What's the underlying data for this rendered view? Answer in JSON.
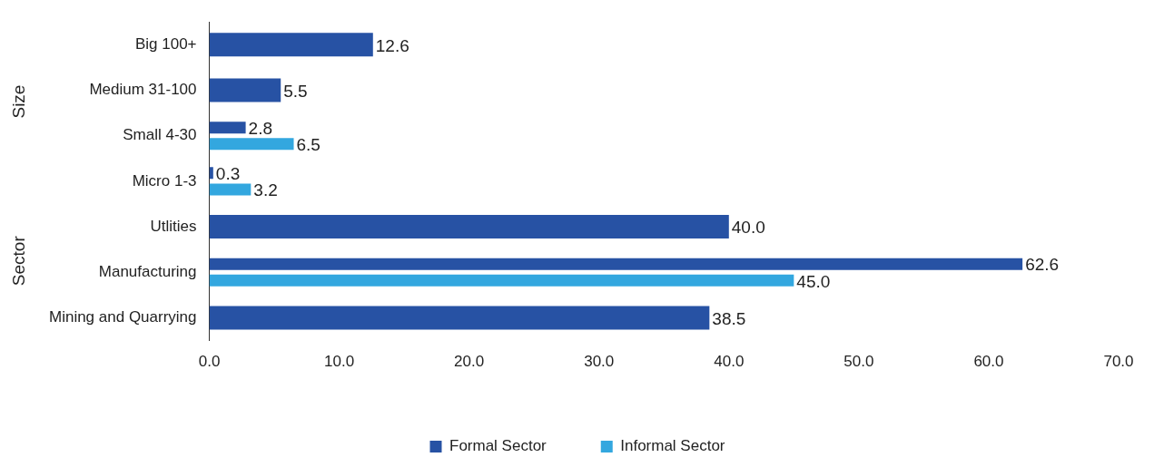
{
  "chart_data": {
    "type": "bar",
    "orientation": "horizontal",
    "categories": [
      "Big 100+",
      "Medium 31-100",
      "Small 4-30",
      "Micro 1-3",
      "Utlities",
      "Manufacturing",
      "Mining and Quarrying"
    ],
    "series": [
      {
        "name": "Formal Sector",
        "color": "#2752a4",
        "values": [
          12.6,
          5.5,
          2.8,
          0.3,
          40.0,
          62.6,
          38.5
        ],
        "value_labels": [
          "12.6",
          "5.5",
          "2.8",
          "0.3",
          "40.0",
          "62.6",
          "38.5"
        ]
      },
      {
        "name": "Informal Sector",
        "color": "#33a7df",
        "values": [
          null,
          null,
          6.5,
          3.2,
          null,
          45.0,
          null
        ],
        "value_labels": [
          null,
          null,
          "6.5",
          "3.2",
          null,
          "45.0",
          null
        ]
      }
    ],
    "xlim": [
      0,
      70
    ],
    "xticks": [
      {
        "value": 0,
        "label": "0.0"
      },
      {
        "value": 10,
        "label": "10.0"
      },
      {
        "value": 20,
        "label": "20.0"
      },
      {
        "value": 30,
        "label": "30.0"
      },
      {
        "value": 40,
        "label": "40.0"
      },
      {
        "value": 50,
        "label": "50.0"
      },
      {
        "value": 60,
        "label": "60.0"
      },
      {
        "value": 70,
        "label": "70.0"
      }
    ],
    "annotations": [
      "Size",
      "Sector"
    ],
    "legend": "bottom",
    "grid": false
  }
}
